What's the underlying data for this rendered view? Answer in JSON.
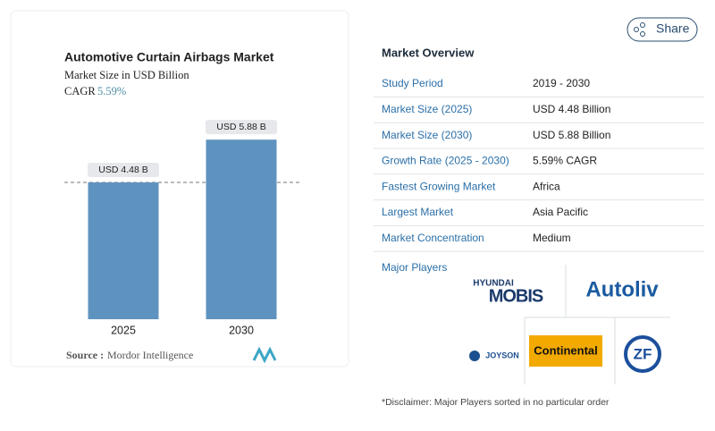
{
  "chart_data": {
    "type": "bar",
    "title": "Automotive Curtain Airbags Market",
    "subtitle": "Market Size in USD Billion",
    "cagr_label": "CAGR",
    "cagr": "5.59%",
    "categories": [
      "2025",
      "2030"
    ],
    "values": [
      4.48,
      5.88
    ],
    "value_labels": [
      "USD 4.48 B",
      "USD 5.88 B"
    ],
    "color": "#5f93bf",
    "ylim": [
      0,
      6.5
    ],
    "source_label": "Source :",
    "source": "Mordor Intelligence"
  },
  "share": "Share",
  "overview": {
    "title": "Market Overview",
    "rows": [
      [
        "Study Period",
        "2019 - 2030"
      ],
      [
        "Market Size (2025)",
        "USD 4.48 Billion"
      ],
      [
        "Market Size (2030)",
        "USD 5.88 Billion"
      ],
      [
        "Growth Rate (2025 - 2030)",
        "5.59% CAGR"
      ],
      [
        "Fastest Growing Market",
        "Africa"
      ],
      [
        "Largest Market",
        "Asia Pacific"
      ],
      [
        "Market Concentration",
        "Medium"
      ]
    ],
    "players_title": "Major Players",
    "players": [
      [
        "HYUNDAI",
        "MOBIS"
      ],
      [
        "Autoliv"
      ],
      [
        "JOYSON"
      ],
      [
        "Continental"
      ],
      [
        "ZF"
      ]
    ],
    "disclaimer": "*Disclaimer: Major Players sorted in no particular order"
  }
}
